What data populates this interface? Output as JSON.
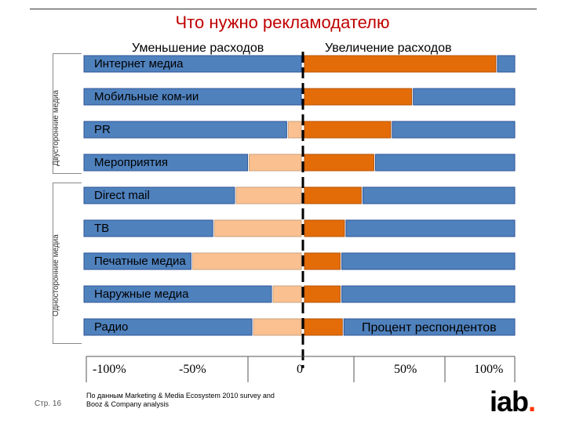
{
  "title": "Что нужно рекламодателю",
  "header": {
    "decrease_label": "Уменьшение расходов",
    "increase_label": "Увеличение расходов"
  },
  "side_labels": {
    "two_way": "Двусторонние медиа",
    "one_way": "Односторонние медиа"
  },
  "axis_note": "Процент респондентов",
  "footer": {
    "page": "Стр. 16",
    "source_line1": "По данным Marketing & Media Ecosystem 2010 survey and",
    "source_line2": "Booz & Company analysis",
    "logo_text": "iab",
    "logo_dot": "."
  },
  "colors": {
    "total_bar": "#4f81bd",
    "decrease_bar": "#fac090",
    "increase_bar": "#e36c09"
  },
  "chart_data": {
    "type": "bar",
    "orientation": "horizontal",
    "title": "Что нужно рекламодателю",
    "xlabel": "Процент респондентов",
    "xlim": [
      -100,
      100
    ],
    "x_ticks": [
      -100,
      -50,
      0,
      50,
      100
    ],
    "x_tick_labels": [
      "-100%",
      "-50%",
      "0",
      "50%",
      "100%"
    ],
    "categories": [
      "Интернет медиа",
      "Мобильные ком-ии",
      "PR",
      "Мероприятия",
      "Direct mail",
      "ТВ",
      "Печатные медиа",
      "Наружные медиа",
      "Радио"
    ],
    "groups": [
      {
        "name": "Двусторонние медиа",
        "categories": [
          "Интернет медиа",
          "Мобильные ком-ии",
          "PR",
          "Мероприятия"
        ]
      },
      {
        "name": "Односторонние медиа",
        "categories": [
          "Direct mail",
          "ТВ",
          "Печатные медиа",
          "Наружные медиа",
          "Радио"
        ]
      }
    ],
    "series": [
      {
        "name": "Уменьшение расходов (всего)",
        "side": "left",
        "layer": "total",
        "values": [
          -3,
          -2,
          -5,
          -24,
          -30,
          -40,
          -50,
          -13,
          -22
        ]
      },
      {
        "name": "Уменьшение расходов",
        "side": "left",
        "layer": "part",
        "values": [
          0,
          0,
          -6,
          -24,
          -30,
          -40,
          -50,
          -13,
          -22
        ]
      },
      {
        "name": "Увеличение расходов (всего)",
        "side": "right",
        "layer": "total",
        "values": [
          100,
          100,
          100,
          100,
          100,
          100,
          100,
          100,
          100
        ]
      },
      {
        "name": "Увеличение расходов",
        "side": "right",
        "layer": "part",
        "values": [
          91,
          51,
          41,
          33,
          27,
          19,
          17,
          17,
          18
        ]
      }
    ]
  }
}
